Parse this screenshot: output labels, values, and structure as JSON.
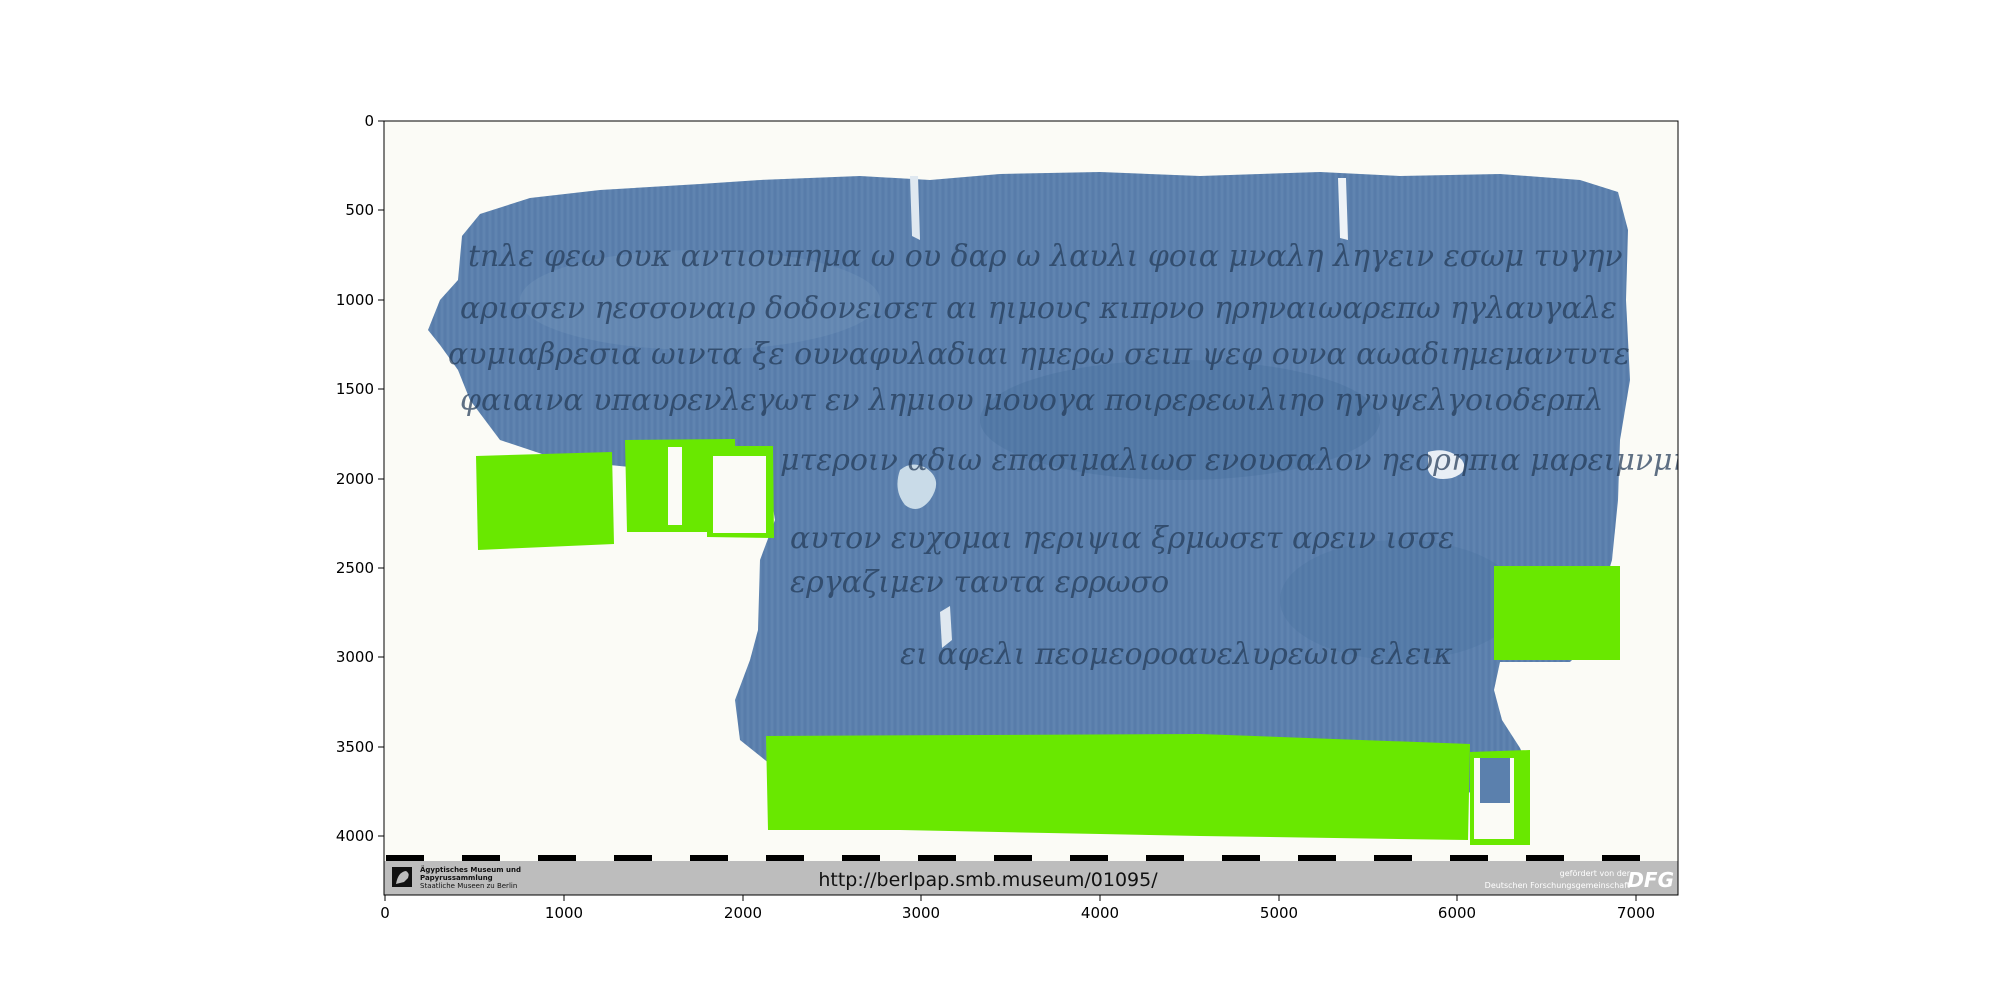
{
  "image_viewer": {
    "x_axis": {
      "range": [
        0,
        7250
      ],
      "ticks": [
        0,
        1000,
        2000,
        3000,
        4000,
        5000,
        6000,
        7000
      ]
    },
    "y_axis": {
      "range": [
        0,
        4300
      ],
      "ticks": [
        0,
        500,
        1000,
        1500,
        2000,
        2500,
        3000,
        3500,
        4000
      ]
    },
    "papyrus": {
      "color": "#5b80ad",
      "handwriting_lines": [
        "tnλε φεω ουκ αντιουπημα ω ου δαρ ω  λαυλι φοια μναλη  ληγειν  εσωμ τυγην",
        "αρισσεν ηεσσοναιρ δοδονεισετ  αι ηιμους  κιπρνο  ηρηναιωαρεπω  ηγλαυγαλε",
        "αυμιαβρεσια ωιντα  ξε  ουναφυλαδιαι  ημερω  σειπ  ψεφ  ουνα  αωαδιημεμαντυτε",
        "φαιαινα  υπαυρενλεγωτ  εν λημιου  μουογα  ποιρερεωιλιηο  ηγυψελγοιοδερπλ",
        "μτεροιν  αδιω  επασιμαλιωσ  ενουσαλον  ηεορηπια  μαρειμνμη",
        "αυτον  ευχομαι  ηεριψια  ξρμωσετ  αρειν  ισσε",
        "εργαζιμεν  ταυτα  ερρωσο",
        "ει  αφελι  πεομεοροαυελυρεωισ  ελεικ"
      ]
    },
    "redaction_color": "#69e800",
    "footer": {
      "url": "http://berlpap.smb.museum/01095/",
      "left_logo_lines": [
        "Ägyptisches Museum und",
        "Papyrussammlung",
        "Staatliche Museen zu Berlin"
      ],
      "right_lines": [
        "gefördert von der",
        "Deutschen Forschungsgemeinschaft"
      ],
      "dfg_mark": "DFG"
    }
  }
}
